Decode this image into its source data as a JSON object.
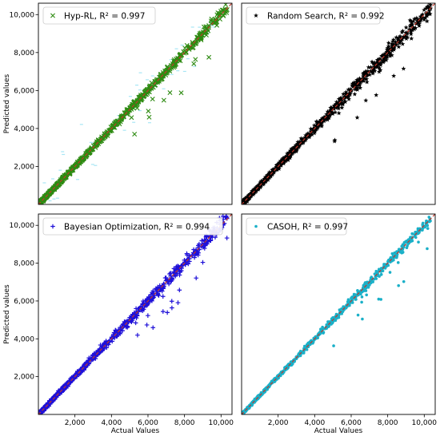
{
  "chart_data": [
    {
      "type": "scatter",
      "legend": "Hyp-RL, R² = 0.997",
      "r2": 0.997,
      "marker": "x",
      "color": "#2e8b12",
      "stray_color": "#a8e6f5",
      "xlim": [
        0,
        10600
      ],
      "ylim": [
        0,
        10600
      ],
      "x_ticks": [],
      "y_ticks": [
        "2,000",
        "4,000",
        "6,000",
        "8,000",
        "10,000"
      ],
      "x_tick_values": [],
      "y_tick_values": [
        2000,
        4000,
        6000,
        8000,
        10000
      ],
      "xlabel": "",
      "ylabel": "Predicted values",
      "legend_position": "top-left",
      "reference_line": "y = x",
      "reference_color": "#c0392b"
    },
    {
      "type": "scatter",
      "legend": "Random Search, R² = 0.992",
      "r2": 0.992,
      "marker": "star",
      "color": "#000000",
      "xlim": [
        0,
        10600
      ],
      "ylim": [
        0,
        10600
      ],
      "x_ticks": [],
      "y_ticks": [],
      "x_tick_values": [],
      "y_tick_values": [],
      "xlabel": "",
      "ylabel": "",
      "legend_position": "top-left",
      "reference_line": "y = x",
      "reference_color": "#c0392b"
    },
    {
      "type": "scatter",
      "legend": "Bayesian Optimization, R² = 0.994",
      "r2": 0.994,
      "marker": "plus",
      "color": "#1f10d8",
      "xlim": [
        0,
        10600
      ],
      "ylim": [
        0,
        10600
      ],
      "x_ticks": [
        "2,000",
        "4,000",
        "6,000",
        "8,000",
        "10,000"
      ],
      "y_ticks": [
        "2,000",
        "4,000",
        "6,000",
        "8,000",
        "10,000"
      ],
      "x_tick_values": [
        2000,
        4000,
        6000,
        8000,
        10000
      ],
      "y_tick_values": [
        2000,
        4000,
        6000,
        8000,
        10000
      ],
      "xlabel": "Actual Values",
      "ylabel": "Predicted values",
      "legend_position": "top-left",
      "reference_line": "y = x",
      "reference_color": "#c0392b"
    },
    {
      "type": "scatter",
      "legend": "CASOH, R² = 0.997",
      "r2": 0.997,
      "marker": "dot",
      "color": "#1ab0c8",
      "xlim": [
        0,
        10600
      ],
      "ylim": [
        0,
        10600
      ],
      "x_ticks": [
        "2,000",
        "4,000",
        "6,000",
        "8,000",
        "10,000"
      ],
      "y_ticks": [],
      "x_tick_values": [
        2000,
        4000,
        6000,
        8000,
        10000
      ],
      "y_tick_values": [],
      "xlabel": "Actual Values",
      "ylabel": "",
      "legend_position": "top-left",
      "reference_line": "y = x",
      "reference_color": "#c0392b"
    }
  ]
}
